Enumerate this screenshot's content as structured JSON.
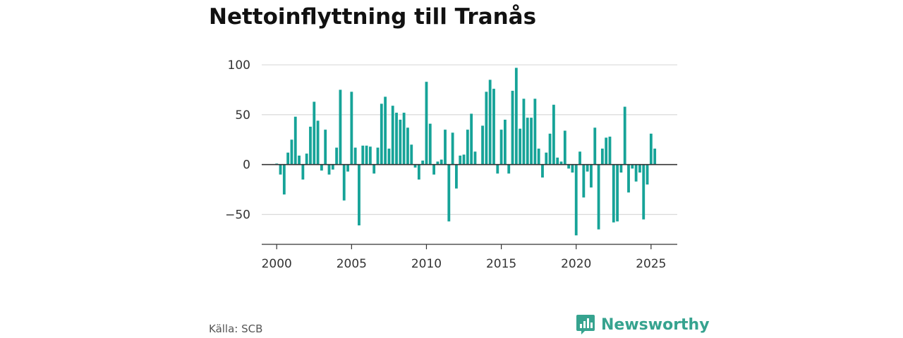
{
  "title": "Nettoinflyttning till Tranås",
  "source": "Källa: SCB",
  "brand": {
    "name": "Newsworthy",
    "logo_icon": "newsworthy-bar-chart-logo-icon",
    "color": "#36a38f"
  },
  "colors": {
    "bar": "#16a398",
    "grid": "#d9d9d9",
    "zero_line": "#333333"
  },
  "chart_data": {
    "type": "bar",
    "title": "Nettoinflyttning till Tranås",
    "xlabel": "",
    "ylabel": "",
    "x_ticks": [
      2000,
      2005,
      2010,
      2015,
      2020,
      2025
    ],
    "y_ticks": [
      -50,
      0,
      50,
      100
    ],
    "y_tick_labels": [
      "−50",
      "0",
      "50",
      "100"
    ],
    "xlim": [
      1999,
      2026.75
    ],
    "ylim": [
      -80,
      105
    ],
    "grid": true,
    "legend": "none",
    "x": [
      2000.0,
      2000.25,
      2000.5,
      2000.75,
      2001.0,
      2001.25,
      2001.5,
      2001.75,
      2002.0,
      2002.25,
      2002.5,
      2002.75,
      2003.0,
      2003.25,
      2003.5,
      2003.75,
      2004.0,
      2004.25,
      2004.5,
      2004.75,
      2005.0,
      2005.25,
      2005.5,
      2005.75,
      2006.0,
      2006.25,
      2006.5,
      2006.75,
      2007.0,
      2007.25,
      2007.5,
      2007.75,
      2008.0,
      2008.25,
      2008.5,
      2008.75,
      2009.0,
      2009.25,
      2009.5,
      2009.75,
      2010.0,
      2010.25,
      2010.5,
      2010.75,
      2011.0,
      2011.25,
      2011.5,
      2011.75,
      2012.0,
      2012.25,
      2012.5,
      2012.75,
      2013.0,
      2013.25,
      2013.5,
      2013.75,
      2014.0,
      2014.25,
      2014.5,
      2014.75,
      2015.0,
      2015.25,
      2015.5,
      2015.75,
      2016.0,
      2016.25,
      2016.5,
      2016.75,
      2017.0,
      2017.25,
      2017.5,
      2017.75,
      2018.0,
      2018.25,
      2018.5,
      2018.75,
      2019.0,
      2019.25,
      2019.5,
      2019.75,
      2020.0,
      2020.25,
      2020.5,
      2020.75,
      2021.0,
      2021.25,
      2021.5,
      2021.75,
      2022.0,
      2022.25,
      2022.5,
      2022.75,
      2023.0,
      2023.25,
      2023.5,
      2023.75,
      2024.0,
      2024.25,
      2024.5,
      2024.75,
      2025.0,
      2025.25
    ],
    "values": [
      1,
      -10,
      -30,
      12,
      25,
      48,
      9,
      -15,
      11,
      38,
      63,
      44,
      -6,
      35,
      -10,
      -5,
      17,
      75,
      -36,
      -7,
      73,
      17,
      -61,
      19,
      19,
      18,
      -9,
      17,
      61,
      68,
      16,
      59,
      52,
      45,
      52,
      37,
      20,
      -3,
      -15,
      4,
      83,
      41,
      -10,
      3,
      5,
      35,
      -57,
      32,
      -24,
      9,
      10,
      35,
      51,
      13,
      0,
      39,
      73,
      85,
      76,
      -9,
      35,
      45,
      -9,
      74,
      97,
      36,
      66,
      47,
      47,
      66,
      16,
      -13,
      12,
      31,
      60,
      7,
      3,
      34,
      -4,
      -8,
      -71,
      13,
      -33,
      -7,
      -23,
      37,
      -65,
      16,
      27,
      28,
      -58,
      -57,
      -8,
      58,
      -28,
      -4,
      -17,
      -8,
      -55,
      -20,
      31,
      16
    ]
  }
}
